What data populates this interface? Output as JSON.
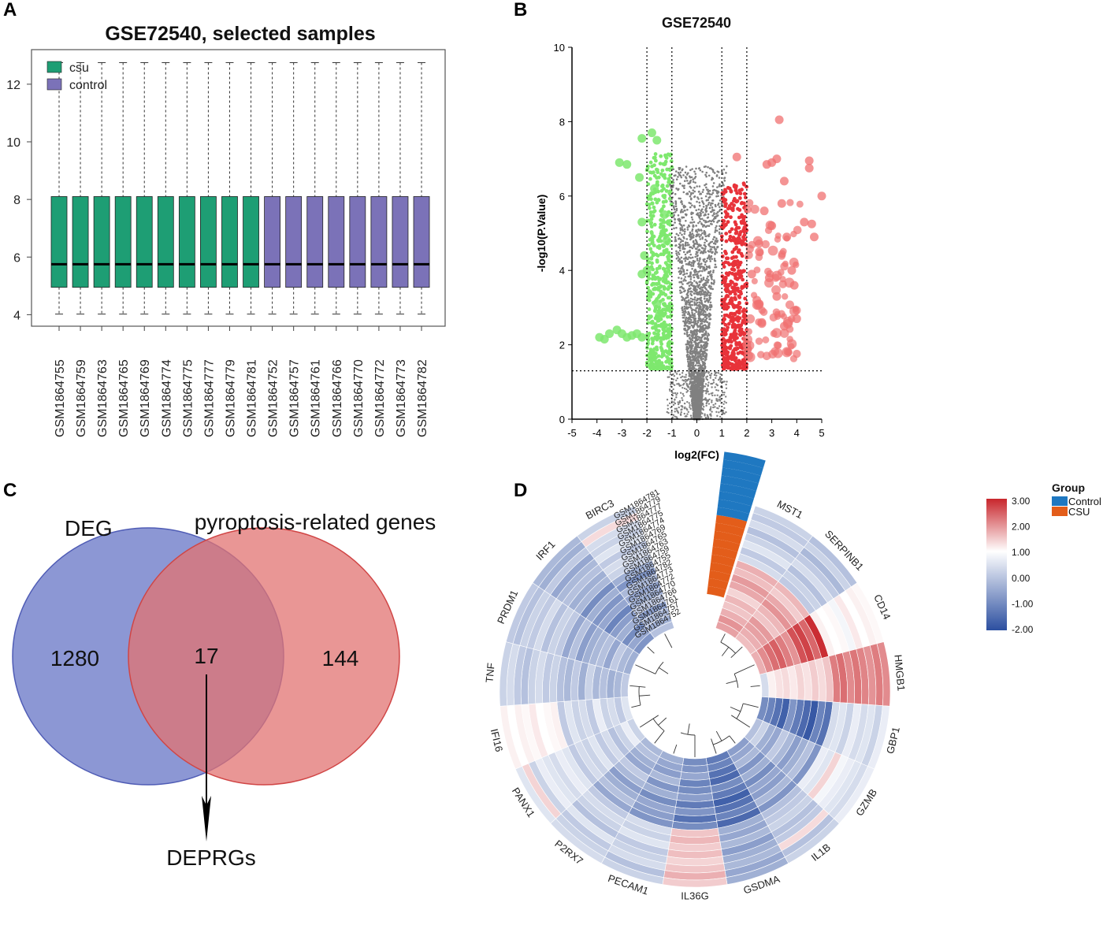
{
  "panels": {
    "a": "A",
    "b": "B",
    "c": "C",
    "d": "D"
  },
  "chart_data": [
    {
      "type": "box",
      "title": "GSE72540, selected samples",
      "ylim": [
        3.6,
        13.2
      ],
      "yticks": [
        4,
        6,
        8,
        10,
        12
      ],
      "legend": [
        {
          "label": "csu",
          "color": "#1e9e74"
        },
        {
          "label": "control",
          "color": "#7b72b8"
        }
      ],
      "samples": [
        "GSM1864755",
        "GSM1864759",
        "GSM1864763",
        "GSM1864765",
        "GSM1864769",
        "GSM1864774",
        "GSM1864775",
        "GSM1864777",
        "GSM1864779",
        "GSM1864781",
        "GSM1864752",
        "GSM1864757",
        "GSM1864761",
        "GSM1864766",
        "GSM1864770",
        "GSM1864772",
        "GSM1864773",
        "GSM1864782"
      ],
      "groups": [
        "csu",
        "csu",
        "csu",
        "csu",
        "csu",
        "csu",
        "csu",
        "csu",
        "csu",
        "csu",
        "control",
        "control",
        "control",
        "control",
        "control",
        "control",
        "control",
        "control"
      ],
      "q1": 4.95,
      "median": 5.75,
      "q3": 8.1,
      "whisker_low": 4.02,
      "whisker_high": 12.75
    },
    {
      "type": "scatter",
      "title": "GSE72540",
      "xlabel": "log2(FC)",
      "ylabel": "-log10(P.Value)",
      "xlim": [
        -5,
        5
      ],
      "ylim": [
        0,
        10
      ],
      "xticks": [
        -5,
        -4,
        -3,
        -2,
        -1,
        0,
        1,
        2,
        3,
        4,
        5
      ],
      "yticks": [
        0,
        2,
        4,
        6,
        8,
        10
      ],
      "fc_thresholds": [
        -2,
        -1,
        1,
        2
      ],
      "p_threshold": 1.3,
      "series": [
        {
          "name": "not significant",
          "color": "#808080"
        },
        {
          "name": "down-regulated",
          "color": "#7ee86e",
          "points": [
            [
              -3.9,
              2.2
            ],
            [
              -3.7,
              2.15
            ],
            [
              -3.5,
              2.3
            ],
            [
              -3.2,
              2.4
            ],
            [
              -3.0,
              2.3
            ],
            [
              -2.8,
              2.2
            ],
            [
              -2.6,
              2.25
            ],
            [
              -2.4,
              2.3
            ],
            [
              -2.2,
              2.2
            ],
            [
              -3.1,
              6.9
            ],
            [
              -2.8,
              6.85
            ],
            [
              -2.2,
              7.55
            ],
            [
              -1.8,
              7.7
            ],
            [
              -1.6,
              7.5
            ],
            [
              -2.3,
              6.5
            ],
            [
              -2.2,
              5.3
            ],
            [
              -2.1,
              4.4
            ],
            [
              -2.0,
              4.0
            ],
            [
              -2.2,
              3.9
            ],
            [
              -1.6,
              3.1
            ],
            [
              -1.5,
              2.8
            ],
            [
              -1.7,
              6.2
            ],
            [
              -1.3,
              5.5
            ],
            [
              -1.2,
              4.8
            ]
          ]
        },
        {
          "name": "up-regulated",
          "color": "#f07070",
          "points": [
            [
              1.6,
              7.05
            ],
            [
              2.8,
              6.85
            ],
            [
              3.0,
              6.9
            ],
            [
              3.2,
              7.0
            ],
            [
              3.3,
              8.05
            ],
            [
              3.5,
              6.4
            ],
            [
              4.5,
              6.95
            ],
            [
              4.5,
              6.75
            ],
            [
              5.0,
              6.0
            ],
            [
              4.3,
              5.3
            ],
            [
              4.6,
              5.25
            ],
            [
              4.7,
              4.9
            ],
            [
              3.8,
              4.0
            ],
            [
              3.9,
              3.6
            ],
            [
              3.2,
              3.3
            ],
            [
              3.6,
              4.9
            ],
            [
              2.6,
              2.6
            ],
            [
              2.4,
              3.2
            ],
            [
              2.9,
              3.8
            ],
            [
              4.0,
              2.7
            ],
            [
              3.0,
              5.2
            ],
            [
              2.7,
              5.6
            ],
            [
              3.4,
              5.8
            ],
            [
              2.2,
              3.9
            ],
            [
              2.5,
              4.5
            ],
            [
              3.5,
              2.5
            ],
            [
              2.0,
              2.0
            ],
            [
              2.5,
              3.1
            ]
          ]
        }
      ]
    },
    {
      "type": "venn",
      "sets": [
        {
          "name": "DEG",
          "only": 1280,
          "color": "#6f7dc9"
        },
        {
          "name": "pyroptosis-related genes",
          "only": 144,
          "color": "#e27372"
        }
      ],
      "intersection": 17,
      "arrow_label": "DEPRGs"
    },
    {
      "type": "heatmap",
      "layout": "circular",
      "genes": [
        "MST1",
        "SERPINB1",
        "CD14",
        "HMGB1",
        "GBP1",
        "GZMB",
        "IL1B",
        "GSDMA",
        "IL36G",
        "PECAM1",
        "P2RX7",
        "PANX1",
        "IFI16",
        "TNF",
        "PRDM1",
        "IRF1",
        "BIRC3"
      ],
      "samples": [
        "GSM1864781",
        "GSM1864779",
        "GSM1864777",
        "GSM1864775",
        "GSM1864774",
        "GSM1864769",
        "GSM1864765",
        "GSM1864763",
        "GSM1864759",
        "GSM1864755",
        "GSM1864782",
        "GSM1864773",
        "GSM1864772",
        "GSM1864770",
        "GSM1864766",
        "GSM1864761",
        "GSM1864757",
        "GSM1864752"
      ],
      "group_title": "Group",
      "groups": [
        {
          "label": "Control",
          "color": "#1f78c1"
        },
        {
          "label": "CSU",
          "color": "#e35d1a"
        }
      ],
      "scale": {
        "min": -2.0,
        "max": 3.0,
        "labels": [
          "3.00",
          "2.00",
          "1.00",
          "0.00",
          "-1.00",
          "-2.00"
        ],
        "low": "#2c4fa0",
        "mid": "#ffffff",
        "high": "#c8262c"
      },
      "values": [
        [
          1.3,
          0.9,
          1.1,
          -0.4,
          -1.3,
          -0.7,
          -1.1,
          -1.5,
          -1.3,
          -0.9,
          -0.8,
          -0.5,
          -0.3,
          -0.6,
          -0.9,
          -1.2,
          -0.7
        ],
        [
          1.5,
          1.1,
          1.6,
          0.2,
          -1.4,
          -0.5,
          -1.0,
          -1.4,
          -1.2,
          -1.0,
          -0.7,
          -0.2,
          -0.6,
          -0.8,
          -0.8,
          -1.0,
          -0.9
        ],
        [
          1.1,
          1.3,
          2.0,
          0.4,
          -1.6,
          -0.9,
          -0.8,
          -1.6,
          -1.0,
          -1.1,
          -0.9,
          -0.5,
          -0.4,
          -0.9,
          -0.6,
          -1.3,
          -0.8
        ],
        [
          0.8,
          1.4,
          2.2,
          0.5,
          -1.8,
          -1.0,
          -1.2,
          -1.7,
          -1.4,
          -0.8,
          -1.0,
          -0.7,
          -0.5,
          -0.7,
          -1.0,
          -0.9,
          -1.1
        ],
        [
          1.0,
          0.8,
          1.8,
          0.3,
          -1.2,
          -0.6,
          -0.9,
          -1.3,
          -1.3,
          -1.2,
          -0.6,
          -0.4,
          -0.2,
          -0.8,
          -0.7,
          -1.1,
          -0.6
        ],
        [
          0.6,
          1.0,
          1.5,
          0.6,
          -1.5,
          -0.8,
          -1.3,
          -1.5,
          -1.1,
          -0.9,
          -0.8,
          -0.6,
          -0.6,
          -0.5,
          -0.8,
          -1.4,
          -0.9
        ],
        [
          1.2,
          1.5,
          2.4,
          0.4,
          -1.7,
          -1.1,
          -1.0,
          -1.8,
          -1.5,
          -1.3,
          -1.1,
          -0.3,
          -0.4,
          -0.9,
          -0.9,
          -1.0,
          -1.0
        ],
        [
          1.4,
          1.2,
          2.6,
          0.7,
          -1.9,
          -0.9,
          -1.1,
          -1.6,
          -1.2,
          -1.0,
          -0.9,
          -0.5,
          -0.5,
          -0.6,
          -1.1,
          -1.2,
          -0.8
        ],
        [
          0.9,
          0.7,
          2.1,
          0.5,
          -1.4,
          -0.7,
          -0.8,
          -1.4,
          -1.6,
          -1.1,
          -0.7,
          -0.4,
          -0.3,
          -0.8,
          -0.7,
          -0.9,
          -1.2
        ],
        [
          1.1,
          1.0,
          2.9,
          0.8,
          -1.6,
          -1.2,
          -1.2,
          -1.7,
          -1.3,
          -1.2,
          -1.0,
          -0.6,
          -0.6,
          -0.7,
          -1.0,
          -1.3,
          -0.9
        ],
        [
          -0.4,
          -0.6,
          0.2,
          1.8,
          -0.4,
          -0.2,
          -0.7,
          -0.9,
          0.8,
          -0.4,
          -0.6,
          -0.3,
          0.2,
          -0.5,
          -0.6,
          -0.8,
          -0.5
        ],
        [
          -0.6,
          -0.5,
          0.0,
          2.0,
          -0.3,
          -0.3,
          -0.6,
          -1.0,
          1.0,
          -0.5,
          -0.4,
          -0.2,
          0.1,
          -0.6,
          -0.5,
          -0.9,
          -0.4
        ],
        [
          -0.3,
          -0.7,
          0.1,
          1.6,
          -0.5,
          0.6,
          -0.5,
          -0.8,
          0.7,
          -0.3,
          -0.5,
          -0.4,
          0.0,
          -0.4,
          -0.7,
          -0.7,
          -0.6
        ],
        [
          -0.5,
          -0.4,
          -0.1,
          1.9,
          -0.2,
          -0.1,
          -0.7,
          -1.1,
          0.9,
          -0.6,
          -0.7,
          -0.3,
          0.3,
          -0.5,
          -0.4,
          -0.8,
          -0.3
        ],
        [
          -0.7,
          -0.6,
          0.3,
          1.7,
          -0.4,
          -0.2,
          -0.6,
          -0.9,
          0.6,
          -0.5,
          -0.3,
          -0.2,
          0.1,
          -0.7,
          -0.6,
          -1.0,
          -0.5
        ],
        [
          -0.4,
          -0.8,
          0.0,
          1.5,
          -0.3,
          -0.3,
          0.5,
          -0.8,
          0.8,
          -0.4,
          -0.6,
          -0.5,
          0.2,
          -0.6,
          -0.5,
          -0.6,
          -0.4
        ],
        [
          -0.6,
          -0.5,
          0.2,
          1.8,
          -0.5,
          -0.4,
          -0.7,
          -1.0,
          1.1,
          -0.7,
          -0.5,
          0.6,
          0.0,
          -0.4,
          -0.7,
          -0.9,
          0.5
        ],
        [
          -0.5,
          -0.7,
          0.1,
          1.6,
          -0.2,
          -0.2,
          -0.5,
          -0.9,
          0.7,
          -0.5,
          -0.4,
          -0.3,
          0.2,
          -0.5,
          -0.6,
          -0.8,
          -0.5
        ]
      ]
    }
  ]
}
